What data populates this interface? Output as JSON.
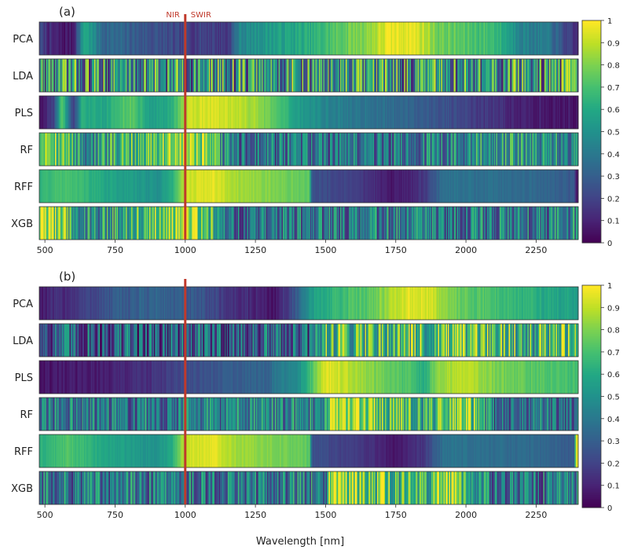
{
  "figure": {
    "xlabel": "Wavelength [nm]"
  },
  "chart_data": [
    {
      "type": "heatmap",
      "panel_label": "(a)",
      "x_range": [
        480,
        2400
      ],
      "x_ticks": [
        500,
        750,
        1000,
        1250,
        1500,
        1750,
        2000,
        2250
      ],
      "rows": [
        "PCA",
        "LDA",
        "PLS",
        "RF",
        "RFF",
        "XGB"
      ],
      "marker": {
        "x": 1000,
        "color": "#c0392b",
        "left_label": "NIR",
        "right_label": "SWIR"
      },
      "colorbar": {
        "min": 0,
        "max": 1,
        "ticks": [
          0,
          0.1,
          0.2,
          0.3,
          0.4,
          0.5,
          0.6,
          0.7,
          0.8,
          0.9,
          1
        ],
        "tick_labels": [
          "0",
          "0.1",
          "0.2",
          "0.3",
          "0.4",
          "0.5",
          "0.6",
          "0.7",
          "0.8",
          "0.9",
          "1"
        ],
        "colormap": "viridis"
      },
      "bands": {
        "PCA": {
          "segments": [
            [
              480,
              0.22
            ],
            [
              520,
              0.1
            ],
            [
              560,
              0.06
            ],
            [
              600,
              0.08
            ],
            [
              640,
              0.62
            ],
            [
              700,
              0.35
            ],
            [
              800,
              0.3
            ],
            [
              900,
              0.24
            ],
            [
              1000,
              0.18
            ],
            [
              1080,
              0.2
            ],
            [
              1150,
              0.16
            ],
            [
              1190,
              0.45
            ],
            [
              1300,
              0.55
            ],
            [
              1450,
              0.62
            ],
            [
              1550,
              0.75
            ],
            [
              1650,
              0.83
            ],
            [
              1720,
              0.96
            ],
            [
              1800,
              0.98
            ],
            [
              1850,
              0.9
            ],
            [
              1900,
              0.78
            ],
            [
              2000,
              0.72
            ],
            [
              2100,
              0.68
            ],
            [
              2200,
              0.45
            ],
            [
              2300,
              0.38
            ],
            [
              2380,
              0.12
            ]
          ],
          "noise": 0.06
        },
        "LDA": {
          "segments": [
            [
              480,
              0.5
            ],
            [
              2400,
              0.5
            ]
          ],
          "noise": 0.45
        },
        "PLS": {
          "segments": [
            [
              480,
              0.05
            ],
            [
              530,
              0.2
            ],
            [
              560,
              0.75
            ],
            [
              600,
              0.15
            ],
            [
              630,
              0.62
            ],
            [
              700,
              0.58
            ],
            [
              800,
              0.75
            ],
            [
              880,
              0.55
            ],
            [
              950,
              0.62
            ],
            [
              1010,
              0.92
            ],
            [
              1080,
              0.95
            ],
            [
              1150,
              0.92
            ],
            [
              1250,
              0.85
            ],
            [
              1330,
              0.7
            ],
            [
              1400,
              0.55
            ],
            [
              1500,
              0.45
            ],
            [
              1600,
              0.4
            ],
            [
              1700,
              0.36
            ],
            [
              1800,
              0.32
            ],
            [
              1900,
              0.26
            ],
            [
              2000,
              0.2
            ],
            [
              2100,
              0.15
            ],
            [
              2200,
              0.08
            ],
            [
              2400,
              0.05
            ]
          ],
          "noise": 0.04
        },
        "RF": {
          "segments": [
            [
              480,
              0.78
            ],
            [
              500,
              0.95
            ],
            [
              650,
              0.45
            ],
            [
              1000,
              0.92
            ],
            [
              1190,
              0.35
            ],
            [
              1500,
              0.4
            ],
            [
              1800,
              0.38
            ],
            [
              2100,
              0.55
            ],
            [
              2400,
              0.5
            ]
          ],
          "noise": 0.28
        },
        "RFF": {
          "segments": [
            [
              480,
              0.65
            ],
            [
              580,
              0.72
            ],
            [
              700,
              0.6
            ],
            [
              800,
              0.55
            ],
            [
              900,
              0.5
            ],
            [
              950,
              0.62
            ],
            [
              1000,
              0.92
            ],
            [
              1100,
              0.96
            ],
            [
              1180,
              0.86
            ],
            [
              1280,
              0.82
            ],
            [
              1360,
              0.78
            ],
            [
              1440,
              0.75
            ],
            [
              1450,
              0.25
            ],
            [
              1550,
              0.2
            ],
            [
              1650,
              0.15
            ],
            [
              1730,
              0.06
            ],
            [
              1800,
              0.1
            ],
            [
              1850,
              0.16
            ],
            [
              1920,
              0.38
            ],
            [
              2100,
              0.36
            ],
            [
              2250,
              0.34
            ],
            [
              2385,
              0.28
            ],
            [
              2390,
              0.05
            ]
          ],
          "noise": 0.03
        },
        "XGB": {
          "segments": [
            [
              480,
              0.82
            ],
            [
              500,
              0.95
            ],
            [
              640,
              0.45
            ],
            [
              1000,
              0.92
            ],
            [
              1190,
              0.35
            ],
            [
              1500,
              0.4
            ],
            [
              1800,
              0.42
            ],
            [
              1900,
              0.38
            ],
            [
              2400,
              0.45
            ]
          ],
          "noise": 0.3
        }
      }
    },
    {
      "type": "heatmap",
      "panel_label": "(b)",
      "x_range": [
        480,
        2400
      ],
      "x_ticks": [
        500,
        750,
        1000,
        1250,
        1500,
        1750,
        2000,
        2250
      ],
      "rows": [
        "PCA",
        "LDA",
        "PLS",
        "RF",
        "RFF",
        "XGB"
      ],
      "marker": {
        "x": 1000,
        "color": "#c0392b"
      },
      "colorbar": {
        "min": 0,
        "max": 1,
        "ticks": [
          0,
          0.1,
          0.2,
          0.3,
          0.4,
          0.5,
          0.6,
          0.7,
          0.8,
          0.9,
          1
        ],
        "tick_labels": [
          "0",
          "0.1",
          "0.2",
          "0.3",
          "0.4",
          "0.5",
          "0.6",
          "0.7",
          "0.8",
          "0.9",
          "1"
        ],
        "colormap": "viridis"
      },
      "bands": {
        "PCA": {
          "segments": [
            [
              480,
              0.08
            ],
            [
              600,
              0.15
            ],
            [
              750,
              0.28
            ],
            [
              900,
              0.32
            ],
            [
              1000,
              0.28
            ],
            [
              1100,
              0.22
            ],
            [
              1150,
              0.15
            ],
            [
              1250,
              0.1
            ],
            [
              1320,
              0.06
            ],
            [
              1400,
              0.3
            ],
            [
              1450,
              0.55
            ],
            [
              1550,
              0.68
            ],
            [
              1650,
              0.75
            ],
            [
              1740,
              0.88
            ],
            [
              1800,
              0.96
            ],
            [
              1880,
              0.92
            ],
            [
              1950,
              0.78
            ],
            [
              2100,
              0.7
            ],
            [
              2250,
              0.62
            ],
            [
              2400,
              0.55
            ]
          ],
          "noise": 0.05
        },
        "LDA": {
          "segments": [
            [
              480,
              0.3
            ],
            [
              1450,
              0.3
            ],
            [
              1500,
              0.7
            ],
            [
              2400,
              0.68
            ]
          ],
          "noise": 0.35
        },
        "PLS": {
          "segments": [
            [
              480,
              0.05
            ],
            [
              700,
              0.08
            ],
            [
              900,
              0.15
            ],
            [
              1000,
              0.22
            ],
            [
              1100,
              0.26
            ],
            [
              1200,
              0.3
            ],
            [
              1300,
              0.32
            ],
            [
              1310,
              0.4
            ],
            [
              1400,
              0.48
            ],
            [
              1500,
              0.96
            ],
            [
              1600,
              0.88
            ],
            [
              1700,
              0.78
            ],
            [
              1800,
              0.7
            ],
            [
              1850,
              0.62
            ],
            [
              1900,
              0.85
            ],
            [
              2000,
              0.9
            ],
            [
              2100,
              0.8
            ],
            [
              2200,
              0.75
            ],
            [
              2400,
              0.7
            ]
          ],
          "noise": 0.04
        },
        "RF": {
          "segments": [
            [
              480,
              0.4
            ],
            [
              1500,
              0.45
            ],
            [
              1510,
              0.92
            ],
            [
              1750,
              0.7
            ],
            [
              1850,
              0.6
            ],
            [
              2000,
              0.88
            ],
            [
              2100,
              0.35
            ],
            [
              2400,
              0.4
            ]
          ],
          "noise": 0.28
        },
        "RFF": {
          "segments": [
            [
              480,
              0.62
            ],
            [
              580,
              0.72
            ],
            [
              700,
              0.6
            ],
            [
              800,
              0.55
            ],
            [
              900,
              0.5
            ],
            [
              950,
              0.62
            ],
            [
              1000,
              0.92
            ],
            [
              1100,
              0.96
            ],
            [
              1180,
              0.86
            ],
            [
              1280,
              0.82
            ],
            [
              1360,
              0.78
            ],
            [
              1440,
              0.75
            ],
            [
              1450,
              0.25
            ],
            [
              1550,
              0.2
            ],
            [
              1650,
              0.15
            ],
            [
              1730,
              0.06
            ],
            [
              1800,
              0.1
            ],
            [
              1850,
              0.16
            ],
            [
              1920,
              0.38
            ],
            [
              2100,
              0.36
            ],
            [
              2250,
              0.34
            ],
            [
              2385,
              0.28
            ],
            [
              2390,
              0.95
            ]
          ],
          "noise": 0.03
        },
        "XGB": {
          "segments": [
            [
              480,
              0.38
            ],
            [
              1500,
              0.42
            ],
            [
              1510,
              0.92
            ],
            [
              1750,
              0.7
            ],
            [
              1850,
              0.6
            ],
            [
              1950,
              0.88
            ],
            [
              2100,
              0.35
            ],
            [
              2400,
              0.42
            ]
          ],
          "noise": 0.3
        }
      }
    }
  ]
}
